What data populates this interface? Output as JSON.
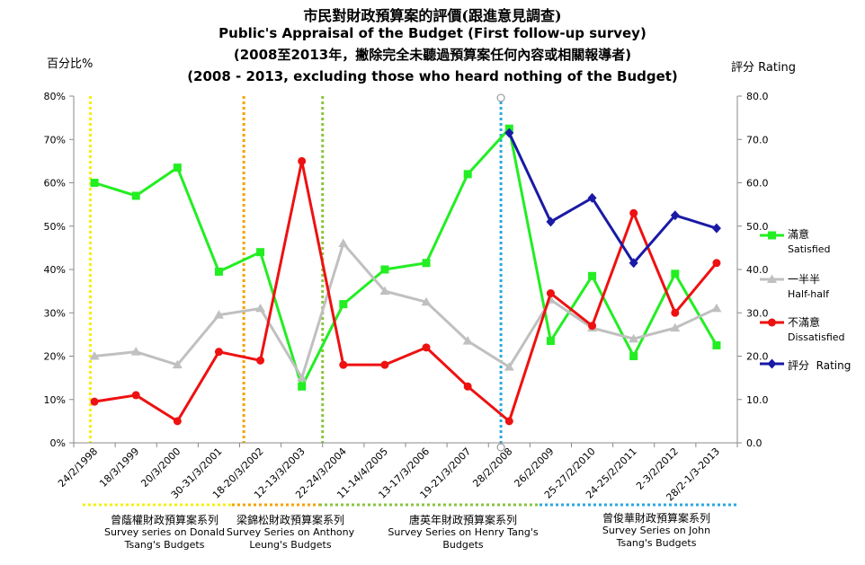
{
  "titles": {
    "line1": "市民對財政預算案的評價(跟進意見調查)",
    "line2": "Public's Appraisal of the Budget (First follow-up survey)",
    "line3": "(2008至2013年，撇除完全未聽過預算案任何內容或相關報導者)",
    "line4": "(2008 - 2013, excluding those who heard nothing of the Budget)"
  },
  "axis_titles": {
    "left": "百分比%",
    "right": "評分 Rating"
  },
  "chart_data": {
    "type": "line",
    "categories": [
      "24/2/1998",
      "18/3/1999",
      "20/3/2000",
      "30-31/3/2001",
      "18-20/3/2002",
      "12-13/3/2003",
      "22-24/3/2004",
      "11-14/4/2005",
      "13-17/3/2006",
      "19-21/3/2007",
      "28/2/2008",
      "26/2/2009",
      "25-27/2/2010",
      "24-25/2/2011",
      "2-3/2/2012",
      "28/2-1/3-2013"
    ],
    "y_left": {
      "ticks": [
        "0%",
        "10%",
        "20%",
        "30%",
        "40%",
        "50%",
        "60%",
        "70%",
        "80%"
      ],
      "range": [
        0,
        80
      ]
    },
    "y_right": {
      "ticks": [
        "0.0",
        "10.0",
        "20.0",
        "30.0",
        "40.0",
        "50.0",
        "60.0",
        "70.0",
        "80.0"
      ],
      "range": [
        0,
        80
      ]
    },
    "grid": false,
    "legend_position": "right",
    "series": [
      {
        "name": "滿意",
        "name_en": "Satisfied",
        "color": "#22ee22",
        "marker": "square",
        "axis": "left",
        "values": [
          60,
          57,
          63.5,
          39.5,
          44,
          13,
          32,
          40,
          41.5,
          62,
          72.5,
          23.5,
          38.5,
          20,
          39,
          22.5
        ]
      },
      {
        "name": "一半半",
        "name_en": "Half-half",
        "color": "#c0c0c0",
        "marker": "triangle",
        "axis": "left",
        "values": [
          20,
          21,
          18,
          29.5,
          31,
          15,
          46,
          35,
          32.5,
          23.5,
          17.5,
          33,
          26.5,
          24,
          26.5,
          31
        ]
      },
      {
        "name": "不滿意",
        "name_en": "Dissatisfied",
        "color": "#ee1111",
        "marker": "circle",
        "axis": "left",
        "values": [
          9.5,
          11,
          5,
          21,
          19,
          65,
          18,
          18,
          22,
          13,
          5,
          34.5,
          27,
          53,
          30,
          41.5
        ]
      },
      {
        "name": "評分",
        "name_en": "Rating",
        "color": "#1a1aa6",
        "marker": "diamond",
        "axis": "right",
        "values": [
          null,
          null,
          null,
          null,
          null,
          null,
          null,
          null,
          null,
          null,
          71.5,
          51,
          56.5,
          41.5,
          52.5,
          49.5
        ]
      }
    ],
    "era_dividers": [
      {
        "after_index": -0.1,
        "color": "#f5f011"
      },
      {
        "after_index": 3.6,
        "color": "#f5a300"
      },
      {
        "after_index": 5.5,
        "color": "#8ac53e"
      },
      {
        "after_index": 9.8,
        "color": "#29a9e0"
      }
    ],
    "eras": [
      {
        "zh": "曾蔭權財政預算案系列",
        "en": "Survey series on Donald Tsang's Budgets",
        "color": "#f5f011"
      },
      {
        "zh": "梁錦松財政預算案系列",
        "en": "Survey Series on Anthony Leung's Budgets",
        "color": "#f5a300"
      },
      {
        "zh": "唐英年財政預算案系列",
        "en": "Survey Series on Henry Tang's Budgets",
        "color": "#8ac53e"
      },
      {
        "zh": "曾俊華財政預算案系列",
        "en": "Survey Series on John Tsang's Budgets",
        "color": "#29a9e0"
      }
    ]
  }
}
